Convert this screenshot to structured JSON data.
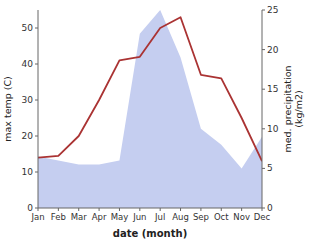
{
  "chart_data": {
    "type": "line",
    "categories": [
      "Jan",
      "Feb",
      "Mar",
      "Apr",
      "May",
      "Jun",
      "Jul",
      "Aug",
      "Sep",
      "Oct",
      "Nov",
      "Dec"
    ],
    "xlabel": "date (month)",
    "ylabel": "max temp (C)",
    "y2label": "med. precipitation\n(kg/m2)",
    "series": [
      {
        "type": "area",
        "axis": "y2",
        "color": "#c5cef0",
        "values": [
          6.5,
          6,
          5.5,
          5.5,
          6,
          22,
          25,
          19,
          10,
          8,
          5,
          9
        ]
      },
      {
        "type": "line",
        "color": "#aa3333",
        "values": [
          14,
          14.5,
          20,
          30,
          41,
          42,
          50,
          53,
          37,
          36,
          25,
          13
        ]
      }
    ],
    "ylim": [
      0,
      55
    ],
    "yticks": [
      0,
      10,
      20,
      30,
      40,
      50
    ],
    "y2lim": [
      0,
      25
    ],
    "y2ticks": [
      0,
      5,
      10,
      15,
      20,
      25
    ],
    "grid": false
  }
}
